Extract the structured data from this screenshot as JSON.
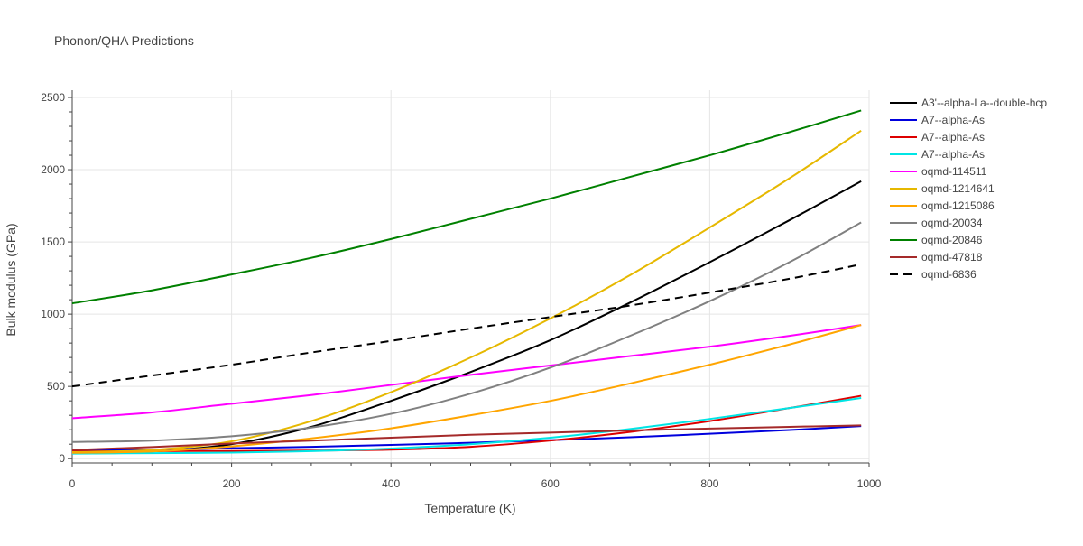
{
  "chart_data": {
    "type": "line",
    "title": "Phonon/QHA Predictions",
    "xlabel": "Temperature (K)",
    "ylabel": "Bulk modulus (GPa)",
    "xlim": [
      0,
      1000
    ],
    "ylim": [
      -30,
      2550
    ],
    "x_ticks": [
      0,
      200,
      400,
      600,
      800,
      1000
    ],
    "y_ticks": [
      0,
      500,
      1000,
      1500,
      2000,
      2500
    ],
    "x_tick_labels": [
      "0",
      "200",
      "400",
      "600",
      "800",
      "1000"
    ],
    "y_tick_labels": [
      "0",
      "500",
      "1000",
      "1500",
      "2000",
      "2500"
    ],
    "grid": true,
    "legend_position": "right",
    "x": [
      0,
      100,
      200,
      300,
      400,
      500,
      600,
      700,
      800,
      900,
      990
    ],
    "series": [
      {
        "name": "A3'--alpha-La--double-hcp",
        "color": "#000000",
        "dash": "solid",
        "values": [
          45,
          50,
          100,
          220,
          400,
          600,
          820,
          1080,
          1360,
          1650,
          1920
        ]
      },
      {
        "name": "A7--alpha-As",
        "color": "#0000dd",
        "dash": "solid",
        "values": [
          55,
          62,
          72,
          82,
          95,
          110,
          128,
          148,
          172,
          198,
          225
        ]
      },
      {
        "name": "A7--alpha-As",
        "color": "#dd0000",
        "dash": "solid",
        "values": [
          50,
          52,
          53,
          56,
          62,
          82,
          125,
          185,
          260,
          350,
          435
        ]
      },
      {
        "name": "A7--alpha-As",
        "color": "#00e5e5",
        "dash": "solid",
        "values": [
          35,
          38,
          42,
          52,
          70,
          100,
          145,
          205,
          275,
          350,
          420
        ]
      },
      {
        "name": "oqmd-114511",
        "color": "#ff00ff",
        "dash": "solid",
        "values": [
          280,
          320,
          380,
          440,
          510,
          580,
          645,
          710,
          775,
          850,
          925
        ]
      },
      {
        "name": "oqmd-1214641",
        "color": "#e6b800",
        "dash": "solid",
        "values": [
          45,
          60,
          120,
          260,
          460,
          700,
          970,
          1270,
          1600,
          1940,
          2270
        ]
      },
      {
        "name": "oqmd-1215086",
        "color": "#ffa500",
        "dash": "solid",
        "values": [
          40,
          50,
          85,
          140,
          210,
          300,
          400,
          520,
          650,
          790,
          925
        ]
      },
      {
        "name": "oqmd-20034",
        "color": "#808080",
        "dash": "solid",
        "values": [
          115,
          125,
          155,
          215,
          310,
          450,
          630,
          850,
          1090,
          1360,
          1635
        ]
      },
      {
        "name": "oqmd-20846",
        "color": "#008000",
        "dash": "solid",
        "values": [
          1075,
          1165,
          1275,
          1390,
          1520,
          1660,
          1800,
          1950,
          2100,
          2260,
          2410
        ]
      },
      {
        "name": "oqmd-47818",
        "color": "#a52a2a",
        "dash": "solid",
        "values": [
          60,
          80,
          105,
          125,
          145,
          165,
          180,
          195,
          208,
          220,
          230
        ]
      },
      {
        "name": "oqmd-6836",
        "color": "#000000",
        "dash": "dash",
        "values": [
          500,
          575,
          650,
          735,
          815,
          900,
          980,
          1060,
          1150,
          1245,
          1345
        ]
      }
    ]
  }
}
